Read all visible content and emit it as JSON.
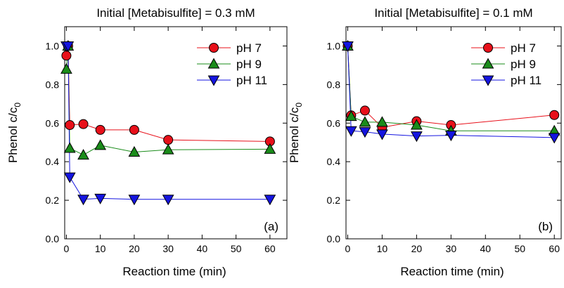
{
  "chart_data": [
    {
      "type": "line",
      "title": "Initial [Metabisulfite] = 0.3 mM",
      "xlabel": "Reaction time  (min)",
      "ylabel": "Phenol c/c",
      "ylabel_subscript": "0",
      "xlim": [
        -0.5,
        65
      ],
      "ylim": [
        0,
        1.1
      ],
      "xticks": [
        0,
        10,
        20,
        30,
        40,
        50,
        60
      ],
      "yticks": [
        0.0,
        0.2,
        0.4,
        0.6,
        0.8,
        1.0
      ],
      "xtick_labels": [
        "0",
        "10",
        "20",
        "30",
        "40",
        "50",
        "60"
      ],
      "ytick_labels": [
        "0.0",
        "0.2",
        "0.4",
        "0.6",
        "0.8",
        "1.0"
      ],
      "panel_label": "(a)",
      "legend_position": "top-right",
      "series": [
        {
          "name": "pH 7",
          "color": "#e8101a",
          "marker": "circle",
          "x": [
            0,
            0.5,
            1,
            5,
            10,
            20,
            30,
            60
          ],
          "y": [
            0.95,
            1.0,
            0.59,
            0.595,
            0.565,
            0.565,
            0.513,
            0.505
          ]
        },
        {
          "name": "pH 9",
          "color": "#1a8c1a",
          "marker": "triangle-up",
          "x": [
            0,
            0.5,
            1,
            5,
            10,
            20,
            30,
            60
          ],
          "y": [
            0.88,
            1.0,
            0.47,
            0.435,
            0.485,
            0.45,
            0.462,
            0.465
          ]
        },
        {
          "name": "pH 11",
          "color": "#1414e0",
          "marker": "triangle-down",
          "x": [
            0,
            0.5,
            1,
            5,
            10,
            20,
            30,
            60
          ],
          "y": [
            1.0,
            1.0,
            0.32,
            0.205,
            0.21,
            0.205,
            0.205,
            0.205
          ]
        }
      ]
    },
    {
      "type": "line",
      "title": "Initial [Metabisulfite] = 0.1 mM",
      "xlabel": "Reaction time  (min)",
      "ylabel": "Phenol c/c",
      "ylabel_subscript": "0",
      "xlim": [
        -0.5,
        62
      ],
      "ylim": [
        0,
        1.1
      ],
      "xticks": [
        0,
        10,
        20,
        30,
        40,
        50,
        60
      ],
      "yticks": [
        0.0,
        0.2,
        0.4,
        0.6,
        0.8,
        1.0
      ],
      "xtick_labels": [
        "0",
        "10",
        "20",
        "30",
        "40",
        "50",
        "60"
      ],
      "ytick_labels": [
        "0.0",
        "0.2",
        "0.4",
        "0.6",
        "0.8",
        "1.0"
      ],
      "panel_label": "(b)",
      "legend_position": "top-right",
      "series": [
        {
          "name": "pH 7",
          "color": "#e8101a",
          "marker": "circle",
          "x": [
            0,
            1,
            5,
            10,
            20,
            30,
            60
          ],
          "y": [
            1.0,
            0.64,
            0.665,
            0.578,
            0.61,
            0.59,
            0.642
          ]
        },
        {
          "name": "pH 9",
          "color": "#1a8c1a",
          "marker": "triangle-up",
          "x": [
            0,
            1,
            5,
            10,
            20,
            30,
            60
          ],
          "y": [
            1.0,
            0.635,
            0.605,
            0.605,
            0.59,
            0.56,
            0.56
          ]
        },
        {
          "name": "pH 11",
          "color": "#1414e0",
          "marker": "triangle-down",
          "x": [
            0,
            1,
            5,
            10,
            20,
            30,
            60
          ],
          "y": [
            1.0,
            0.56,
            0.555,
            0.543,
            0.533,
            0.537,
            0.525
          ]
        }
      ]
    }
  ]
}
